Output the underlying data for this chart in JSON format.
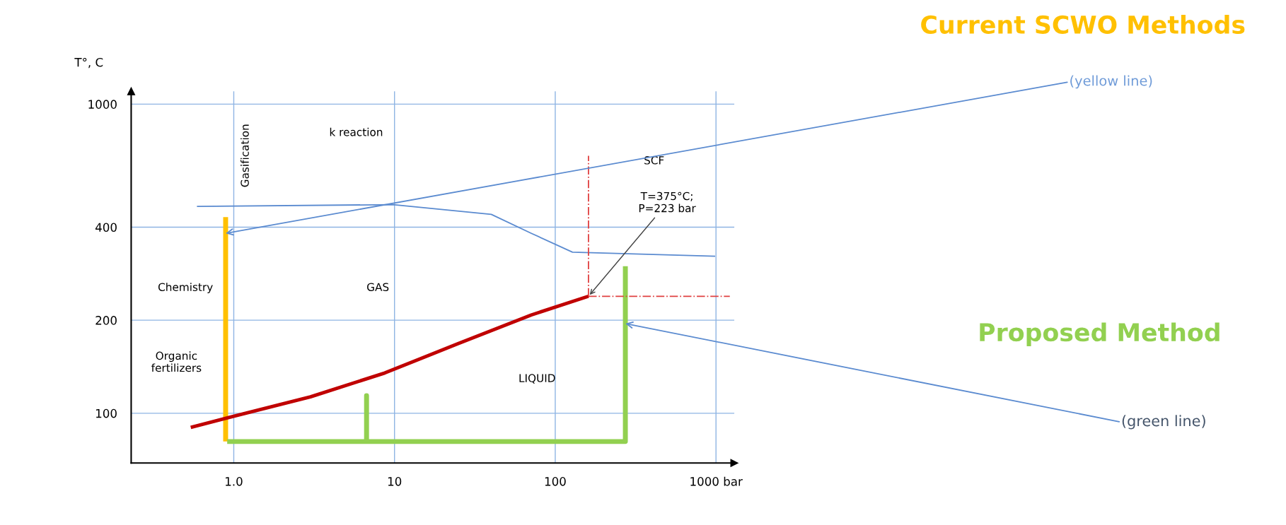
{
  "chart_data": {
    "type": "line",
    "ylabel": "T°, C",
    "log": "xy",
    "grid": true,
    "xlim": [
      0.23,
      1300
    ],
    "ylim": [
      69,
      1100
    ],
    "xticks": [
      {
        "value": 1,
        "label": "1.0"
      },
      10,
      100,
      {
        "value": 1000,
        "label": "1000 bar"
      }
    ],
    "yticks": [
      100,
      200,
      400,
      1000
    ],
    "series": [
      {
        "color": "#ffc000",
        "x": [
          0.89,
          0.89
        ],
        "values": [
          81,
          431
        ]
      },
      {
        "color": "#92d050",
        "x": [
          0.91,
          6.7,
          6.7,
          6.7,
          273,
          273
        ],
        "values": [
          81,
          81,
          114,
          81,
          81,
          299
        ]
      },
      {
        "color": "#c00000",
        "x": [
          0.54,
          0.94,
          3.0,
          8.7,
          24.9,
          71,
          161
        ],
        "values": [
          90,
          97,
          113,
          135,
          168,
          208,
          239
        ]
      },
      {
        "color": "#5b8bd0",
        "x": [
          0.59,
          9.8,
          40,
          71,
          128,
          988
        ],
        "values": [
          467,
          473,
          440,
          382,
          332,
          322
        ]
      },
      {
        "color": "#e04040",
        "line_style": "dashdot",
        "x": [
          161,
          161
        ],
        "values": [
          239,
          681
        ]
      },
      {
        "color": "#e04040",
        "line_style": "dashdot",
        "x": [
          161,
          1219
        ],
        "values": [
          239,
          239
        ]
      }
    ],
    "annotations": [
      "Gasification",
      "k reaction",
      "SCF",
      {
        "text": "T=375°C;\nP=223 bar",
        "x": 161,
        "y": 239
      },
      "Chemistry",
      "GAS",
      "Organic\nfertilizers",
      "LIQUID",
      "Current SCWO Methods",
      {
        "text": "(yellow line)",
        "x": 0.89,
        "y": 382
      },
      "Proposed Method",
      {
        "text": "(green line)",
        "x": 273,
        "y": 195
      }
    ]
  }
}
